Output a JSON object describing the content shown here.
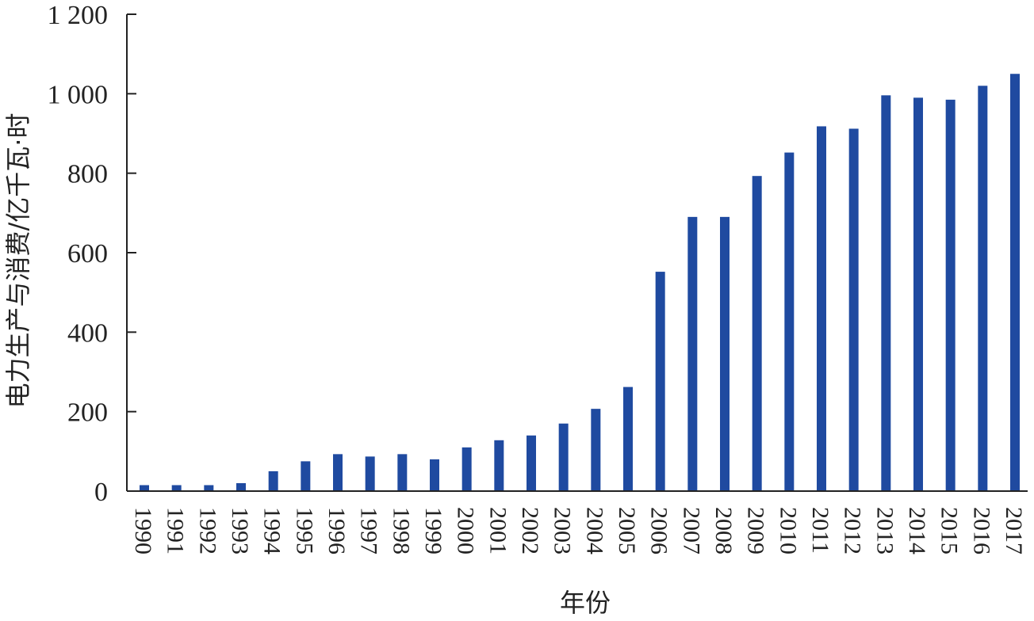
{
  "chart_data": {
    "type": "bar",
    "title": "",
    "xlabel": "年份",
    "ylabel": "电力生产与消费/亿千瓦·时",
    "categories": [
      "1990",
      "1991",
      "1992",
      "1993",
      "1994",
      "1995",
      "1996",
      "1997",
      "1998",
      "1999",
      "2000",
      "2001",
      "2002",
      "2003",
      "2004",
      "2005",
      "2006",
      "2007",
      "2008",
      "2009",
      "2010",
      "2011",
      "2012",
      "2013",
      "2014",
      "2015",
      "2016",
      "2017"
    ],
    "values": [
      15,
      15,
      15,
      20,
      50,
      75,
      93,
      87,
      93,
      80,
      110,
      128,
      140,
      170,
      207,
      262,
      552,
      690,
      690,
      793,
      852,
      918,
      912,
      996,
      990,
      985,
      1020,
      1050
    ],
    "ylim": [
      0,
      1200
    ],
    "yticks": [
      0,
      200,
      400,
      600,
      800,
      1000,
      1200
    ],
    "ytick_labels": [
      "0",
      "200",
      "400",
      "600",
      "800",
      "1 000",
      "1 200"
    ],
    "bar_color": "#1f4aa0",
    "grid": false,
    "legend": "none"
  }
}
